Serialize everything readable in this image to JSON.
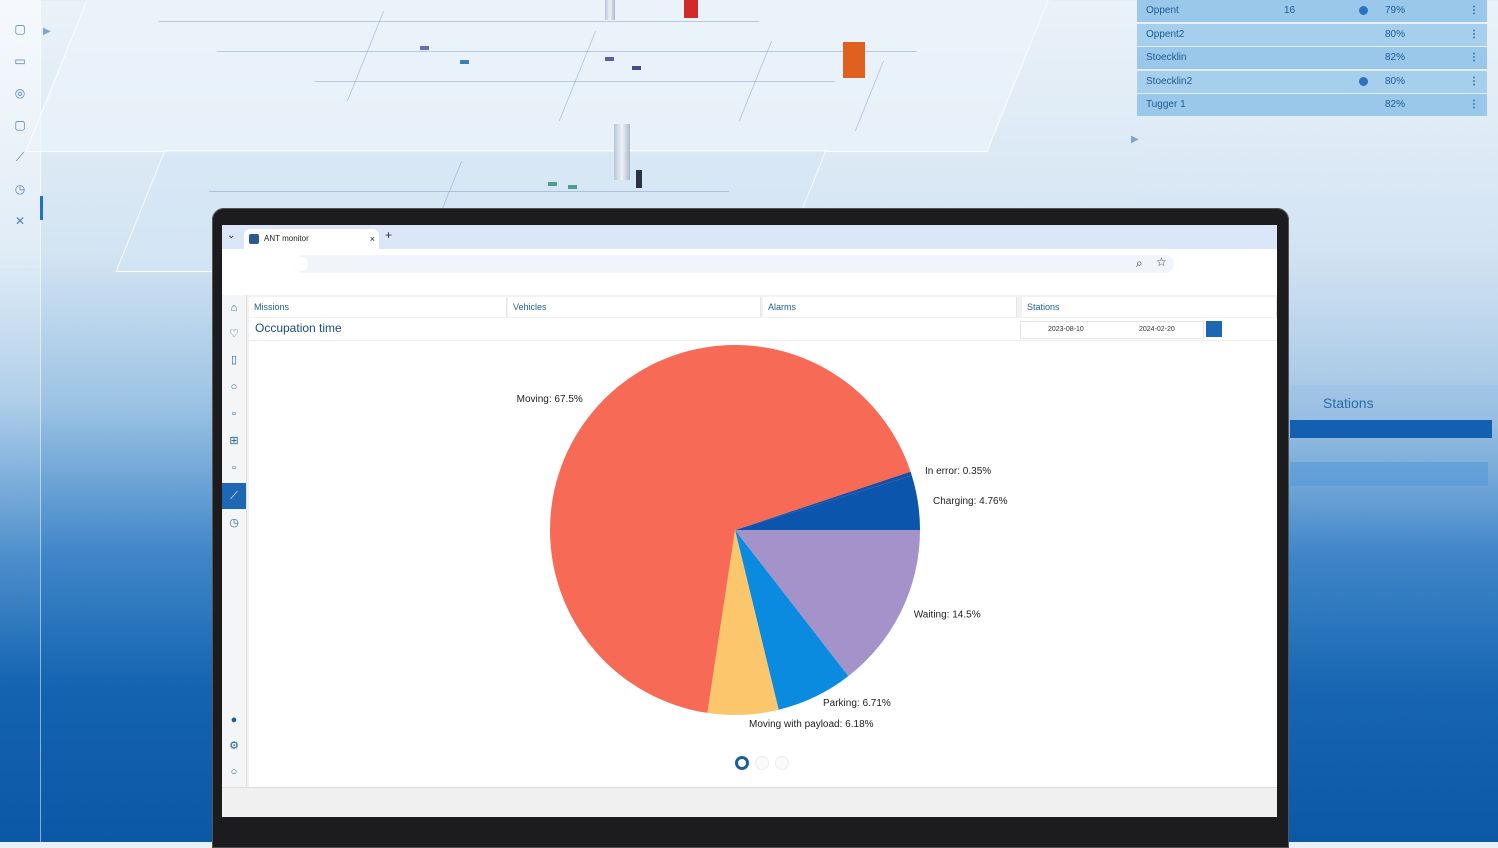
{
  "background": {
    "vehicles": [
      {
        "name": "Oppent",
        "count": "16",
        "battery": "79%",
        "has_icon": true
      },
      {
        "name": "Oppent2",
        "count": "",
        "battery": "80%",
        "has_icon": false
      },
      {
        "name": "Stoecklin",
        "count": "",
        "battery": "82%",
        "has_icon": false
      },
      {
        "name": "Stoecklin2",
        "count": "",
        "battery": "80%",
        "has_icon": true
      },
      {
        "name": "Tugger 1",
        "count": "",
        "battery": "82%",
        "has_icon": false
      }
    ],
    "stations_panel_title": "Stations"
  },
  "browser": {
    "tab_title": "ANT monitor",
    "tab_close": "×",
    "new_tab": "+"
  },
  "nav": {
    "tabs": [
      "Missions",
      "Vehicles",
      "Alarms",
      "Stations"
    ]
  },
  "page": {
    "title": "Occupation time",
    "date_from": "2023-08-10",
    "date_to": "2024-02-20"
  },
  "colors": {
    "accent": "#1e67b4",
    "moving": "#f76a55",
    "in_error": "#1d4fa0",
    "charging": "#0b55ac",
    "waiting": "#a493cb",
    "parking": "#0b8be0",
    "moving_with_payload": "#fcc76c"
  },
  "chart_data": {
    "type": "pie",
    "title": "",
    "slices": [
      {
        "label": "In error",
        "value": 0.35,
        "display": "In error: 0.35%",
        "color": "#1d4fa0"
      },
      {
        "label": "Charging",
        "value": 4.76,
        "display": "Charging: 4.76%",
        "color": "#0b55ac"
      },
      {
        "label": "Waiting",
        "value": 14.5,
        "display": "Waiting: 14.5%",
        "color": "#a493cb"
      },
      {
        "label": "Parking",
        "value": 6.71,
        "display": "Parking: 6.71%",
        "color": "#0b8be0"
      },
      {
        "label": "Moving with payload",
        "value": 6.18,
        "display": "Moving with payload: 6.18%",
        "color": "#fcc76c"
      },
      {
        "label": "Moving",
        "value": 67.5,
        "display": "Moving: 67.5%",
        "color": "#f76a55"
      }
    ],
    "legend": "none",
    "pages": 3,
    "current_page": 1
  }
}
